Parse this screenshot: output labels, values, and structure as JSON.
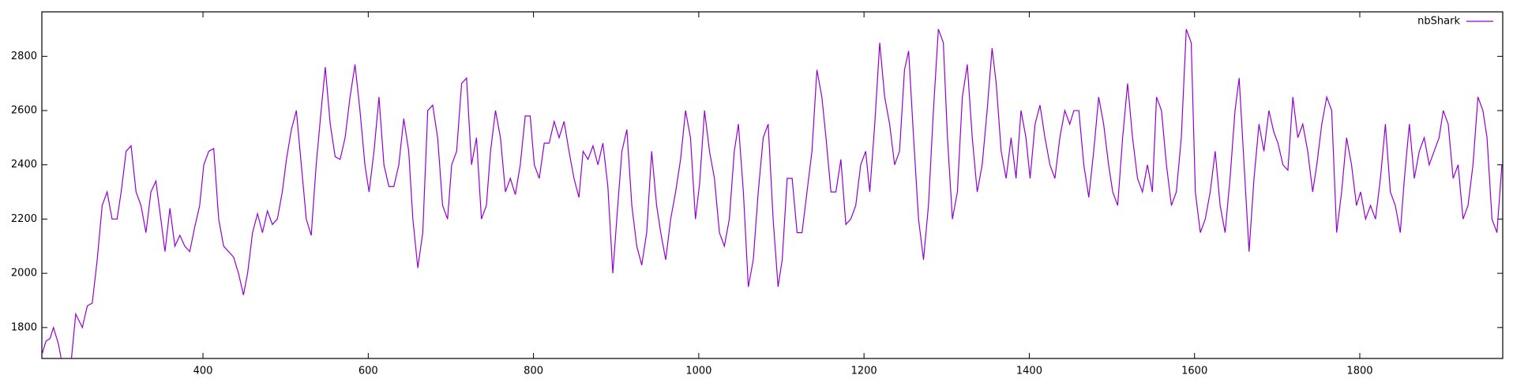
{
  "chart_data": {
    "type": "line",
    "x": [
      205,
      210,
      215,
      219,
      225,
      230,
      240,
      246,
      254,
      260,
      266,
      272,
      278,
      284,
      290,
      296,
      301,
      307,
      313,
      319,
      325,
      331,
      337,
      343,
      349,
      354,
      360,
      366,
      372,
      378,
      384,
      390,
      396,
      401,
      407,
      413,
      419,
      425,
      431,
      437,
      443,
      449,
      454,
      460,
      466,
      472,
      478,
      484,
      490,
      496,
      501,
      507,
      513,
      519,
      525,
      531,
      537,
      543,
      548,
      554,
      560,
      566,
      572,
      578,
      584,
      590,
      596,
      601,
      607,
      613,
      619,
      625,
      631,
      637,
      643,
      649,
      654,
      660,
      666,
      672,
      678,
      684,
      690,
      696,
      701,
      707,
      713,
      719,
      725,
      731,
      737,
      743,
      748,
      754,
      760,
      766,
      772,
      778,
      784,
      790,
      796,
      801,
      807,
      813,
      819,
      825,
      831,
      837,
      843,
      849,
      855,
      860,
      866,
      872,
      878,
      884,
      890,
      896,
      902,
      907,
      913,
      919,
      925,
      931,
      937,
      943,
      949,
      954,
      960,
      966,
      972,
      978,
      984,
      990,
      996,
      1001,
      1007,
      1013,
      1019,
      1025,
      1031,
      1037,
      1043,
      1048,
      1054,
      1060,
      1066,
      1072,
      1078,
      1084,
      1090,
      1096,
      1101,
      1107,
      1113,
      1119,
      1125,
      1131,
      1137,
      1143,
      1149,
      1154,
      1160,
      1166,
      1172,
      1178,
      1184,
      1190,
      1196,
      1202,
      1207,
      1213,
      1219,
      1225,
      1231,
      1237,
      1243,
      1249,
      1254,
      1260,
      1266,
      1272,
      1278,
      1284,
      1290,
      1296,
      1301,
      1307,
      1313,
      1319,
      1325,
      1331,
      1337,
      1343,
      1349,
      1355,
      1360,
      1366,
      1372,
      1378,
      1384,
      1390,
      1396,
      1401,
      1407,
      1413,
      1419,
      1425,
      1431,
      1437,
      1443,
      1449,
      1454,
      1460,
      1466,
      1472,
      1478,
      1484,
      1490,
      1496,
      1501,
      1507,
      1513,
      1519,
      1525,
      1531,
      1537,
      1543,
      1549,
      1554,
      1560,
      1566,
      1572,
      1578,
      1584,
      1590,
      1596,
      1601,
      1607,
      1613,
      1619,
      1625,
      1631,
      1637,
      1643,
      1649,
      1654,
      1660,
      1666,
      1672,
      1678,
      1684,
      1690,
      1696,
      1701,
      1707,
      1713,
      1719,
      1725,
      1731,
      1737,
      1743,
      1748,
      1754,
      1760,
      1766,
      1772,
      1778,
      1784,
      1790,
      1796,
      1801,
      1807,
      1813,
      1819,
      1825,
      1831,
      1837,
      1843,
      1849,
      1854,
      1860,
      1866,
      1872,
      1878,
      1884,
      1890,
      1896,
      1901,
      1907,
      1913,
      1919,
      1925,
      1931,
      1937,
      1943,
      1949,
      1954,
      1960,
      1966,
      1972
    ],
    "series": [
      {
        "name": "nbShark",
        "color": "#9400d3",
        "values": [
          1700,
          1750,
          1760,
          1800,
          1740,
          1660,
          1660,
          1850,
          1800,
          1880,
          1890,
          2050,
          2250,
          2300,
          2200,
          2200,
          2300,
          2450,
          2470,
          2300,
          2250,
          2150,
          2300,
          2340,
          2200,
          2080,
          2240,
          2100,
          2140,
          2100,
          2080,
          2170,
          2250,
          2400,
          2450,
          2460,
          2200,
          2100,
          2080,
          2060,
          2000,
          1920,
          2000,
          2150,
          2220,
          2150,
          2230,
          2180,
          2200,
          2300,
          2420,
          2530,
          2600,
          2400,
          2200,
          2140,
          2400,
          2600,
          2760,
          2550,
          2430,
          2420,
          2500,
          2650,
          2770,
          2600,
          2400,
          2300,
          2450,
          2650,
          2400,
          2320,
          2320,
          2400,
          2570,
          2450,
          2200,
          2020,
          2150,
          2600,
          2620,
          2500,
          2250,
          2200,
          2400,
          2450,
          2700,
          2720,
          2400,
          2500,
          2200,
          2250,
          2450,
          2600,
          2500,
          2300,
          2350,
          2290,
          2400,
          2580,
          2580,
          2400,
          2350,
          2480,
          2480,
          2560,
          2500,
          2560,
          2450,
          2350,
          2280,
          2450,
          2420,
          2470,
          2400,
          2480,
          2320,
          2000,
          2250,
          2450,
          2530,
          2250,
          2100,
          2030,
          2150,
          2450,
          2250,
          2150,
          2050,
          2200,
          2300,
          2420,
          2600,
          2500,
          2200,
          2330,
          2600,
          2450,
          2350,
          2150,
          2100,
          2200,
          2450,
          2550,
          2300,
          1950,
          2050,
          2300,
          2500,
          2550,
          2200,
          1950,
          2050,
          2350,
          2350,
          2150,
          2150,
          2300,
          2450,
          2750,
          2650,
          2500,
          2300,
          2300,
          2420,
          2180,
          2200,
          2250,
          2400,
          2450,
          2300,
          2550,
          2850,
          2650,
          2550,
          2400,
          2450,
          2750,
          2820,
          2500,
          2200,
          2050,
          2250,
          2600,
          2900,
          2850,
          2500,
          2200,
          2300,
          2650,
          2770,
          2500,
          2300,
          2400,
          2600,
          2830,
          2700,
          2450,
          2350,
          2500,
          2350,
          2600,
          2500,
          2350,
          2550,
          2620,
          2500,
          2400,
          2350,
          2500,
          2600,
          2550,
          2600,
          2600,
          2400,
          2280,
          2450,
          2650,
          2550,
          2400,
          2300,
          2250,
          2500,
          2700,
          2500,
          2350,
          2300,
          2400,
          2300,
          2650,
          2600,
          2400,
          2250,
          2300,
          2500,
          2900,
          2850,
          2300,
          2150,
          2200,
          2300,
          2450,
          2250,
          2150,
          2350,
          2600,
          2720,
          2400,
          2080,
          2350,
          2550,
          2450,
          2600,
          2520,
          2480,
          2400,
          2380,
          2650,
          2500,
          2550,
          2450,
          2300,
          2400,
          2550,
          2650,
          2600,
          2150,
          2300,
          2500,
          2400,
          2250,
          2300,
          2200,
          2250,
          2200,
          2350,
          2550,
          2300,
          2250,
          2150,
          2350,
          2550,
          2350,
          2450,
          2500,
          2400,
          2450,
          2500,
          2600,
          2550,
          2350,
          2400,
          2200,
          2250,
          2400,
          2650,
          2600,
          2500,
          2200,
          2150,
          2400
        ]
      }
    ],
    "xlim": [
      205,
      1973
    ],
    "ylim": [
      1686,
      2964
    ],
    "xticks": [
      400,
      600,
      800,
      1000,
      1200,
      1400,
      1600,
      1800
    ],
    "yticks": [
      1800,
      2000,
      2200,
      2400,
      2600,
      2800
    ],
    "legend": "top-right"
  }
}
